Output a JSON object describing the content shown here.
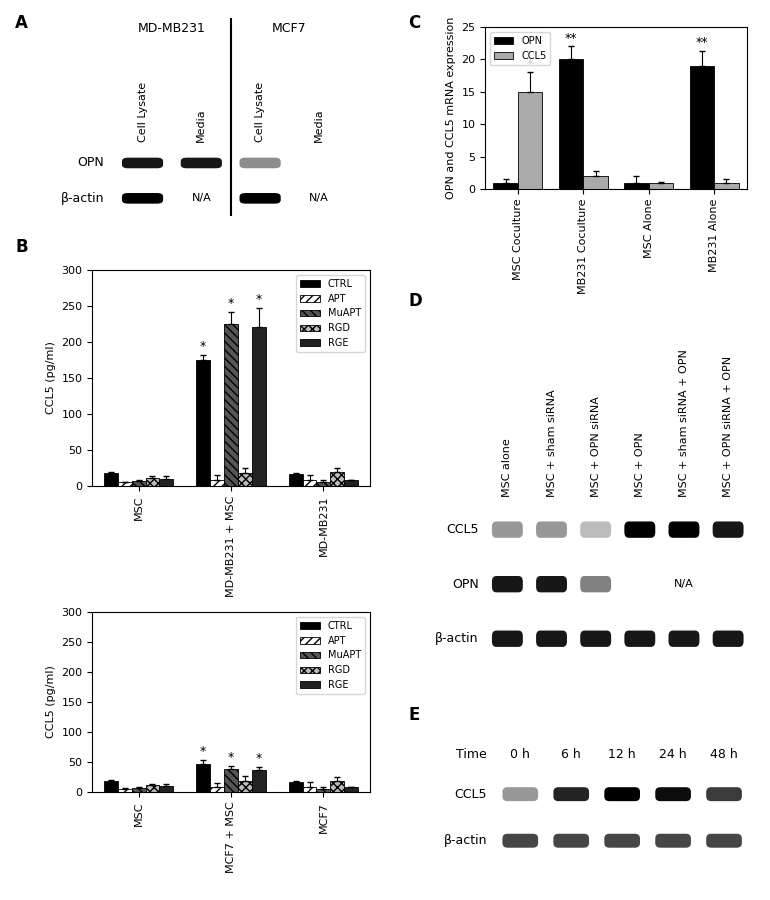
{
  "panel_labels": [
    "A",
    "B",
    "C",
    "D",
    "E"
  ],
  "chart_data": [
    {
      "type": "bar",
      "y_label": "CCL5 (pg/ml)",
      "categories": [
        "MSC",
        "MD-MB231 + MSC",
        "MD-MB231"
      ],
      "ylim": [
        0,
        300
      ],
      "yticks": [
        0,
        50,
        100,
        150,
        200,
        250,
        300
      ],
      "grid": false,
      "legend": "upper right",
      "series": [
        {
          "name": "CTRL",
          "color": "#000000",
          "values": [
            18,
            175,
            16
          ],
          "errors": [
            2,
            7,
            2
          ]
        },
        {
          "name": "APT",
          "color": "#ffffff",
          "values": [
            5,
            8,
            8
          ],
          "errors": [
            1,
            7,
            7
          ]
        },
        {
          "name": "MuAPT",
          "color": "#555555",
          "values": [
            7,
            225,
            5
          ],
          "errors": [
            1,
            16,
            3
          ]
        },
        {
          "name": "RGD",
          "color": "#bbbbbb",
          "values": [
            11,
            18,
            19
          ],
          "errors": [
            3,
            7,
            6
          ]
        },
        {
          "name": "RGE",
          "color": "#222222",
          "values": [
            10,
            221,
            8
          ],
          "errors": [
            4,
            26,
            1
          ]
        }
      ],
      "annotations": [
        {
          "text": "*",
          "category": 1,
          "series": "CTRL"
        },
        {
          "text": "*",
          "category": 1,
          "series": "MuAPT"
        },
        {
          "text": "*",
          "category": 1,
          "series": "RGE"
        }
      ]
    },
    {
      "type": "bar",
      "y_label": "CCL5 (pg/ml)",
      "categories": [
        "MSC",
        "MCF7 + MSC",
        "MCF7"
      ],
      "ylim": [
        0,
        300
      ],
      "yticks": [
        0,
        50,
        100,
        150,
        200,
        250,
        300
      ],
      "grid": false,
      "legend": "upper right",
      "series": [
        {
          "name": "CTRL",
          "color": "#000000",
          "values": [
            18,
            47,
            17
          ],
          "errors": [
            2,
            6,
            2
          ]
        },
        {
          "name": "APT",
          "color": "#ffffff",
          "values": [
            5,
            8,
            9
          ],
          "errors": [
            1,
            7,
            7
          ]
        },
        {
          "name": "MuAPT",
          "color": "#555555",
          "values": [
            7,
            38,
            5
          ],
          "errors": [
            1,
            6,
            4
          ]
        },
        {
          "name": "RGD",
          "color": "#bbbbbb",
          "values": [
            11,
            19,
            19
          ],
          "errors": [
            3,
            7,
            6
          ]
        },
        {
          "name": "RGE",
          "color": "#222222",
          "values": [
            10,
            36,
            8
          ],
          "errors": [
            4,
            6,
            1
          ]
        }
      ],
      "annotations": [
        {
          "text": "*",
          "category": 1,
          "series": "CTRL"
        },
        {
          "text": "*",
          "category": 1,
          "series": "MuAPT"
        },
        {
          "text": "*",
          "category": 1,
          "series": "RGE"
        }
      ]
    },
    {
      "type": "bar",
      "y_label": "OPN and CCL5 mRNA expression",
      "categories": [
        "MSC Coculture",
        "MB231 Coculture",
        "MSC Alone",
        "MB231 Alone"
      ],
      "ylim": [
        0,
        25
      ],
      "yticks": [
        0,
        5,
        10,
        15,
        20,
        25
      ],
      "grid": false,
      "legend": "upper left",
      "series": [
        {
          "name": "OPN",
          "color": "#000000",
          "values": [
            1,
            20,
            1,
            19
          ],
          "errors": [
            0.5,
            2,
            1,
            2.3
          ]
        },
        {
          "name": "CCL5",
          "color": "#aaaaaa",
          "values": [
            15,
            2,
            1,
            1
          ],
          "errors": [
            3,
            0.8,
            0.1,
            0.6
          ]
        }
      ],
      "annotations": [
        {
          "text": "*",
          "category": 0,
          "series": "CCL5"
        },
        {
          "text": "**",
          "category": 1,
          "series": "OPN"
        },
        {
          "text": "**",
          "category": 3,
          "series": "OPN"
        }
      ]
    }
  ],
  "blots": [
    {
      "groups": [
        {
          "label": "MD-MB231",
          "lanes": 2
        },
        {
          "label": "MCF7",
          "lanes": 2
        }
      ],
      "lanes": [
        "Cell Lysate",
        "Media",
        "Cell Lysate",
        "Media"
      ],
      "rows": [
        {
          "name": "OPN",
          "bands": [
            0.9,
            0.9,
            0.4,
            0
          ]
        },
        {
          "name": "β-actin",
          "bands": [
            1.0,
            null,
            1.0,
            null
          ],
          "note": "N/A"
        }
      ]
    },
    {
      "lanes": [
        "MSC alone",
        "MSC + sham siRNA",
        "MSC + OPN siRNA",
        "MSC + OPN",
        "MSC + sham siRNA + OPN",
        "MSC + OPN siRNA + OPN"
      ],
      "rows": [
        {
          "name": "CCL5",
          "bands": [
            0.35,
            0.35,
            0.2,
            1.0,
            1.0,
            0.9
          ]
        },
        {
          "name": "OPN",
          "bands": [
            0.9,
            0.9,
            0.45,
            null,
            null,
            null
          ],
          "note": "N/A"
        },
        {
          "name": "β-actin",
          "bands": [
            0.9,
            0.9,
            0.9,
            0.9,
            0.9,
            0.9
          ]
        }
      ]
    },
    {
      "lane_header": "Time",
      "lanes": [
        "0 h",
        "6 h",
        "12 h",
        "24 h",
        "48 h"
      ],
      "rows": [
        {
          "name": "CCL5",
          "bands": [
            0.35,
            0.85,
            1.0,
            0.95,
            0.75
          ]
        },
        {
          "name": "β-actin",
          "bands": [
            0.7,
            0.7,
            0.7,
            0.7,
            0.7
          ]
        }
      ]
    }
  ]
}
